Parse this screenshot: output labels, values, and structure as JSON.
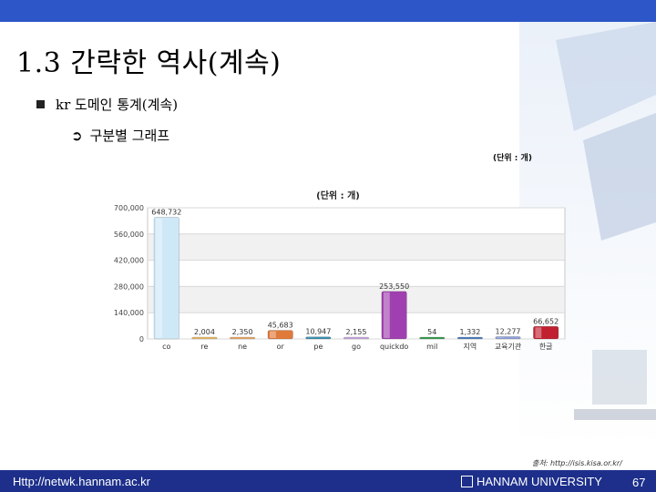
{
  "slide": {
    "title": "1.3 간략한 역사(계속)",
    "bullet1": "kr 도메인 통계(계속)",
    "bullet2": "구분별 그래프",
    "unit_label": "(단위 : 개)"
  },
  "chart_data": {
    "type": "bar",
    "title": "(단위 : 개)",
    "categories": [
      "co",
      "re",
      "ne",
      "or",
      "pe",
      "go",
      "quickdo",
      "mil",
      "지역",
      "교육기관",
      "한글"
    ],
    "values": [
      648732,
      2004,
      2350,
      45683,
      10947,
      2155,
      253550,
      54,
      1332,
      12277,
      66652
    ],
    "value_labels": [
      "648,732",
      "2,004",
      "2,350",
      "45,683",
      "10,947",
      "2,155",
      "253,550",
      "54",
      "1,332",
      "12,277",
      "66,652"
    ],
    "colors": [
      "#cfe8f8",
      "#e8b96a",
      "#e8a868",
      "#e07a3a",
      "#3a8fb0",
      "#c8a8e0",
      "#a040b0",
      "#3aa050",
      "#5080c0",
      "#90a0d8",
      "#c02030"
    ],
    "ylim": [
      0,
      700000
    ],
    "yticks": [
      0,
      140000,
      280000,
      420000,
      560000,
      700000
    ],
    "ytick_labels": [
      "0",
      "140,000",
      "280,000",
      "420,000",
      "560,000",
      "700,000"
    ],
    "grid": true,
    "xlabel": "",
    "ylabel": ""
  },
  "footer": {
    "source": "출처: http://isis.kisa.or.kr/",
    "url": "Http://netwk.hannam.ac.kr",
    "university": "HANNAM UNIVERSITY",
    "page": "67"
  }
}
